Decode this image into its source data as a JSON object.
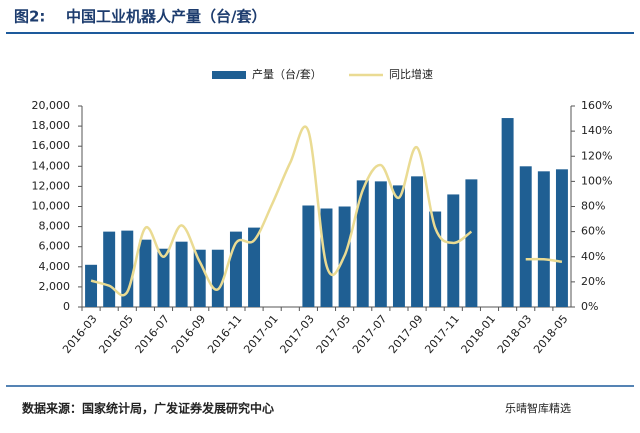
{
  "chart_data": {
    "type": "bar_line",
    "figure_label": "图2:",
    "title": "中国工业机器人产量（台/套）",
    "source": "数据来源：国家统计局，广发证券发展研究中心",
    "watermark": "乐晴智库精选",
    "categories": [
      "2016-03",
      null,
      "2016-05",
      null,
      "2016-07",
      null,
      "2016-09",
      null,
      "2016-11",
      null,
      "2017-01",
      null,
      "2017-03",
      null,
      "2017-05",
      null,
      "2017-07",
      null,
      "2017-09",
      null,
      "2017-11",
      null,
      "2018-01",
      null,
      "2018-03",
      null,
      "2018-05"
    ],
    "series": [
      {
        "name": "产量（台/套）",
        "color": "#1f5f93",
        "type": "bar",
        "values": [
          4200,
          7500,
          7600,
          6700,
          5800,
          6500,
          5700,
          5700,
          7500,
          7900,
          null,
          null,
          10100,
          9800,
          10000,
          12600,
          12500,
          12100,
          13000,
          9500,
          11200,
          12700,
          null,
          18800,
          14000,
          13500,
          13700
        ]
      },
      {
        "name": "同比增速",
        "color": "#eadb93",
        "type": "line",
        "axis": "y2",
        "values": [
          21,
          17,
          12,
          63,
          40,
          65,
          36,
          14,
          51,
          53,
          82,
          115,
          140,
          33,
          41,
          93,
          113,
          87,
          127,
          63,
          51,
          60,
          null,
          null,
          38,
          38,
          36
        ]
      }
    ],
    "ylim": [
      0,
      20000
    ],
    "yticks": [
      0,
      {
        "value": 2000,
        "label": "2,000"
      },
      {
        "value": 4000,
        "label": "4,000"
      },
      {
        "value": 6000,
        "label": "6,000"
      },
      {
        "value": 8000,
        "label": "8,000"
      },
      {
        "value": 10000,
        "label": "10,000"
      },
      {
        "value": 12000,
        "label": "12,000"
      },
      {
        "value": 14000,
        "label": "14,000"
      },
      {
        "value": 16000,
        "label": "16,000"
      },
      {
        "value": 18000,
        "label": "18,000"
      },
      {
        "value": 20000,
        "label": "20,000"
      }
    ],
    "y2lim": [
      0,
      160
    ],
    "y2ticks": [
      {
        "value": 0,
        "label": "0%"
      },
      {
        "value": 20,
        "label": "20%"
      },
      {
        "value": 40,
        "label": "40%"
      },
      {
        "value": 60,
        "label": "60%"
      },
      {
        "value": 80,
        "label": "80%"
      },
      {
        "value": 100,
        "label": "100%"
      },
      {
        "value": 120,
        "label": "120%"
      },
      {
        "value": 140,
        "label": "140%"
      },
      {
        "value": 160,
        "label": "160%"
      }
    ]
  }
}
